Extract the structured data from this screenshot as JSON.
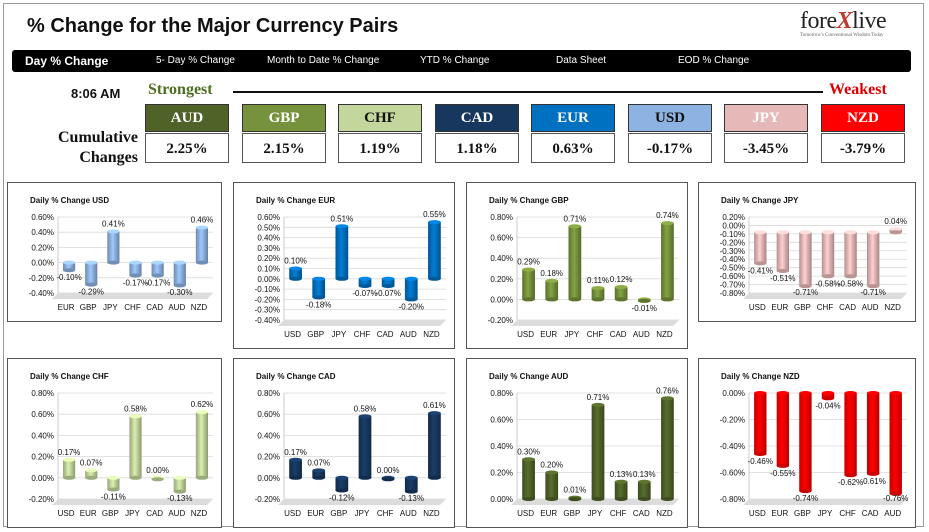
{
  "header": {
    "title": "% Change for the Major Currency Pairs",
    "logo_text_a": "fore",
    "logo_text_x": "X",
    "logo_text_b": "live",
    "logo_tagline": "Tomorrow's Conventional Wisdom Today"
  },
  "nav": {
    "tabs": [
      {
        "label": "Day % Change"
      },
      {
        "label": "5- Day % Change"
      },
      {
        "label": "Month to Date % Change"
      },
      {
        "label": "YTD % Change"
      },
      {
        "label": "Data Sheet"
      },
      {
        "label": "EOD % Change"
      }
    ]
  },
  "ranking": {
    "time": "8:06 AM",
    "strongest_label": "Strongest",
    "weakest_label": "Weakest",
    "cumulative_label_1": "Cumulative",
    "cumulative_label_2": "Changes",
    "currencies": [
      {
        "code": "AUD",
        "value": "2.25%",
        "bg": "#4f6228",
        "fg": "#ffffff"
      },
      {
        "code": "GBP",
        "value": "2.15%",
        "bg": "#76923c",
        "fg": "#ffffff"
      },
      {
        "code": "CHF",
        "value": "1.19%",
        "bg": "#c3d69b",
        "fg": "#111111"
      },
      {
        "code": "CAD",
        "value": "1.18%",
        "bg": "#17375e",
        "fg": "#ffffff"
      },
      {
        "code": "EUR",
        "value": "0.63%",
        "bg": "#0070c0",
        "fg": "#ffffff"
      },
      {
        "code": "USD",
        "value": "-0.17%",
        "bg": "#8db3e2",
        "fg": "#111111"
      },
      {
        "code": "JPY",
        "value": "-3.45%",
        "bg": "#e6b9b8",
        "fg": "#ffffff"
      },
      {
        "code": "NZD",
        "value": "-3.79%",
        "bg": "#ff0000",
        "fg": "#ffffff"
      }
    ]
  },
  "chart_data": [
    {
      "type": "bar",
      "title": "Daily % Change USD",
      "color": "#8db3e2",
      "categories": [
        "EUR",
        "GBP",
        "JPY",
        "CHF",
        "CAD",
        "AUD",
        "NZD"
      ],
      "values": [
        -0.1,
        -0.29,
        0.41,
        -0.17,
        -0.17,
        -0.3,
        0.46
      ],
      "labels": [
        "-0.10%",
        "-0.29%",
        "0.41%",
        "-0.17%",
        "-0.17%",
        "-0.30%",
        "0.46%"
      ],
      "yticks": [
        "0.60%",
        "0.40%",
        "0.20%",
        "0.00%",
        "-0.20%",
        "-0.40%"
      ],
      "ylim": [
        -0.4,
        0.6
      ]
    },
    {
      "type": "bar",
      "title": "Daily % Change EUR",
      "color": "#0070c0",
      "categories": [
        "USD",
        "GBP",
        "JPY",
        "CHF",
        "CAD",
        "AUD",
        "NZD"
      ],
      "values": [
        0.1,
        -0.18,
        0.51,
        -0.07,
        -0.07,
        -0.2,
        0.55
      ],
      "labels": [
        "0.10%",
        "-0.18%",
        "0.51%",
        "-0.07%",
        "-0.07%",
        "-0.20%",
        "0.55%"
      ],
      "yticks": [
        "0.60%",
        "0.50%",
        "0.40%",
        "0.30%",
        "0.20%",
        "0.10%",
        "0.00%",
        "-0.10%",
        "-0.20%",
        "-0.30%",
        "-0.40%"
      ],
      "ylim": [
        -0.4,
        0.6
      ]
    },
    {
      "type": "bar",
      "title": "Daily % Change GBP",
      "color": "#76923c",
      "categories": [
        "USD",
        "EUR",
        "JPY",
        "CHF",
        "CAD",
        "AUD",
        "NZD"
      ],
      "values": [
        0.29,
        0.18,
        0.71,
        0.11,
        0.12,
        -0.01,
        0.74
      ],
      "labels": [
        "0.29%",
        "0.18%",
        "0.71%",
        "0.11%",
        "0.12%",
        "-0.01%",
        "0.74%"
      ],
      "yticks": [
        "0.80%",
        "0.60%",
        "0.40%",
        "0.20%",
        "0.00%",
        "-0.20%"
      ],
      "ylim": [
        -0.2,
        0.8
      ]
    },
    {
      "type": "bar",
      "title": "Daily % Change JPY",
      "color": "#e6b9b8",
      "categories": [
        "USD",
        "EUR",
        "GBP",
        "CHF",
        "CAD",
        "AUD",
        "NZD"
      ],
      "values": [
        -0.41,
        -0.51,
        -0.71,
        -0.58,
        -0.58,
        -0.71,
        0.04
      ],
      "labels": [
        "-0.41%",
        "-0.51%",
        "-0.71%",
        "-0.58%",
        "-0.58%",
        "-0.71%",
        "0.04%"
      ],
      "yticks": [
        "0.20%",
        "0.00%",
        "-0.10%",
        "-0.20%",
        "-0.30%",
        "-0.40%",
        "-0.50%",
        "-0.60%",
        "-0.70%",
        "-0.80%"
      ],
      "ylim": [
        -0.8,
        0.2
      ]
    },
    {
      "type": "bar",
      "title": "Daily % Change CHF",
      "color": "#c3d69b",
      "categories": [
        "USD",
        "EUR",
        "GBP",
        "JPY",
        "CAD",
        "AUD",
        "NZD"
      ],
      "values": [
        0.17,
        0.07,
        -0.11,
        0.58,
        0.0,
        -0.13,
        0.62
      ],
      "labels": [
        "0.17%",
        "0.07%",
        "-0.11%",
        "0.58%",
        "0.00%",
        "-0.13%",
        "0.62%"
      ],
      "yticks": [
        "0.80%",
        "0.60%",
        "0.40%",
        "0.20%",
        "0.00%",
        "-0.20%"
      ],
      "ylim": [
        -0.2,
        0.8
      ]
    },
    {
      "type": "bar",
      "title": "Daily % Change CAD",
      "color": "#17375e",
      "categories": [
        "USD",
        "EUR",
        "GBP",
        "JPY",
        "CHF",
        "AUD",
        "NZD"
      ],
      "values": [
        0.17,
        0.07,
        -0.12,
        0.58,
        0.0,
        -0.13,
        0.61
      ],
      "labels": [
        "0.17%",
        "0.07%",
        "-0.12%",
        "0.58%",
        "0.00%",
        "-0.13%",
        "0.61%"
      ],
      "yticks": [
        "0.80%",
        "0.60%",
        "0.40%",
        "0.20%",
        "0.00%",
        "-0.20%"
      ],
      "ylim": [
        -0.2,
        0.8
      ]
    },
    {
      "type": "bar",
      "title": "Daily % Change AUD",
      "color": "#4f6228",
      "categories": [
        "USD",
        "EUR",
        "GBP",
        "JPY",
        "CHF",
        "CAD",
        "NZD"
      ],
      "values": [
        0.3,
        0.2,
        0.01,
        0.71,
        0.13,
        0.13,
        0.76
      ],
      "labels": [
        "0.30%",
        "0.20%",
        "0.01%",
        "0.71%",
        "0.13%",
        "0.13%",
        "0.76%"
      ],
      "yticks": [
        "0.80%",
        "0.60%",
        "0.40%",
        "0.20%",
        "0.00%"
      ],
      "ylim": [
        0.0,
        0.8
      ]
    },
    {
      "type": "bar",
      "title": "Daily % Change NZD",
      "color": "#ff0000",
      "categories": [
        "USD",
        "EUR",
        "GBP",
        "JPY",
        "CHF",
        "CAD",
        "AUD"
      ],
      "values": [
        -0.46,
        -0.55,
        -0.74,
        -0.04,
        -0.62,
        -0.61,
        -0.76
      ],
      "labels": [
        "-0.46%",
        "-0.55%",
        "-0.74%",
        "-0.04%",
        "-0.62%",
        "-0.61%",
        "-0.76%"
      ],
      "yticks": [
        "0.00%",
        "-0.20%",
        "-0.40%",
        "-0.60%",
        "-0.80%"
      ],
      "ylim": [
        -0.8,
        0.0
      ]
    }
  ]
}
